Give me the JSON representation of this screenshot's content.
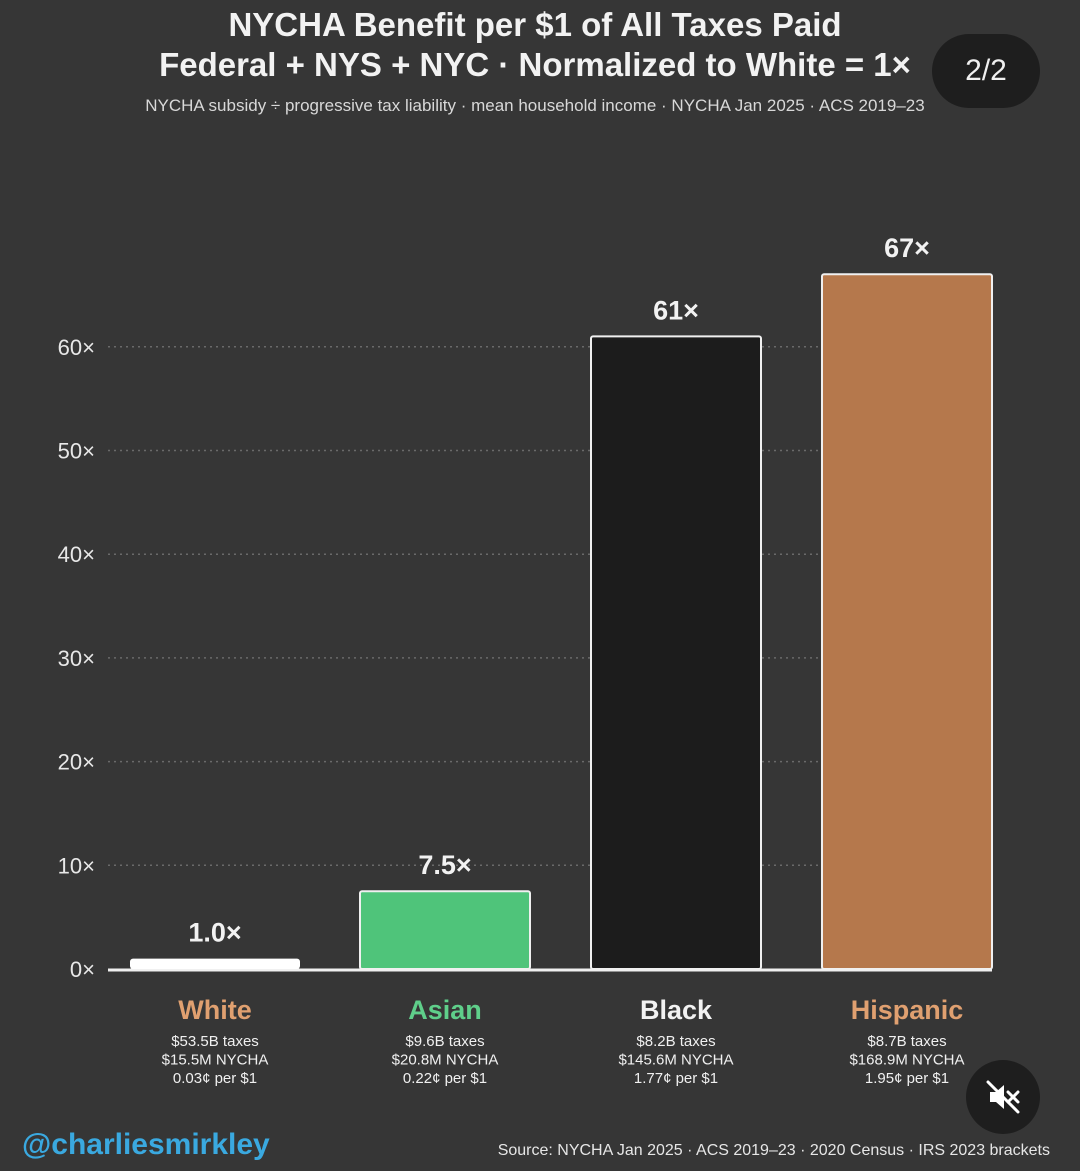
{
  "chart_data": {
    "type": "bar",
    "title": "NYCHA Benefit per $1 of All Taxes Paid",
    "subtitle_line": "Federal + NYS + NYC · Normalized to White = 1×",
    "caption": "NYCHA subsidy ÷ progressive tax liability · mean household income · NYCHA Jan 2025 · ACS 2019–23",
    "categories": [
      "White",
      "Asian",
      "Black",
      "Hispanic"
    ],
    "values": [
      1.0,
      7.5,
      61,
      67
    ],
    "value_labels": [
      "1.0×",
      "7.5×",
      "61×",
      "67×"
    ],
    "colors": [
      "#ffffff",
      "#4fc47a",
      "#1c1c1c",
      "#b5784c"
    ],
    "label_colors": [
      "#e0a070",
      "#5fcf8a",
      "#f2f2f2",
      "#e0a070"
    ],
    "details": [
      [
        "$53.5B taxes",
        "$15.5M NYCHA",
        "0.03¢ per $1"
      ],
      [
        "$9.6B taxes",
        "$20.8M NYCHA",
        "0.22¢ per $1"
      ],
      [
        "$8.2B taxes",
        "$145.6M NYCHA",
        "1.77¢ per $1"
      ],
      [
        "$8.7B taxes",
        "$168.9M NYCHA",
        "1.95¢ per $1"
      ]
    ],
    "yticks": [
      0,
      10,
      20,
      30,
      40,
      50,
      60
    ],
    "ytick_labels": [
      "0×",
      "10×",
      "20×",
      "30×",
      "40×",
      "50×",
      "60×"
    ],
    "ylim": [
      0,
      70
    ],
    "grid": true
  },
  "overlay": {
    "pager": "2/2",
    "handle": "@charliesmirkley",
    "source": "Source: NYCHA Jan 2025 · ACS 2019–23 · 2020 Census · IRS 2023 brackets",
    "mute_icon": "speaker-muted-icon"
  }
}
